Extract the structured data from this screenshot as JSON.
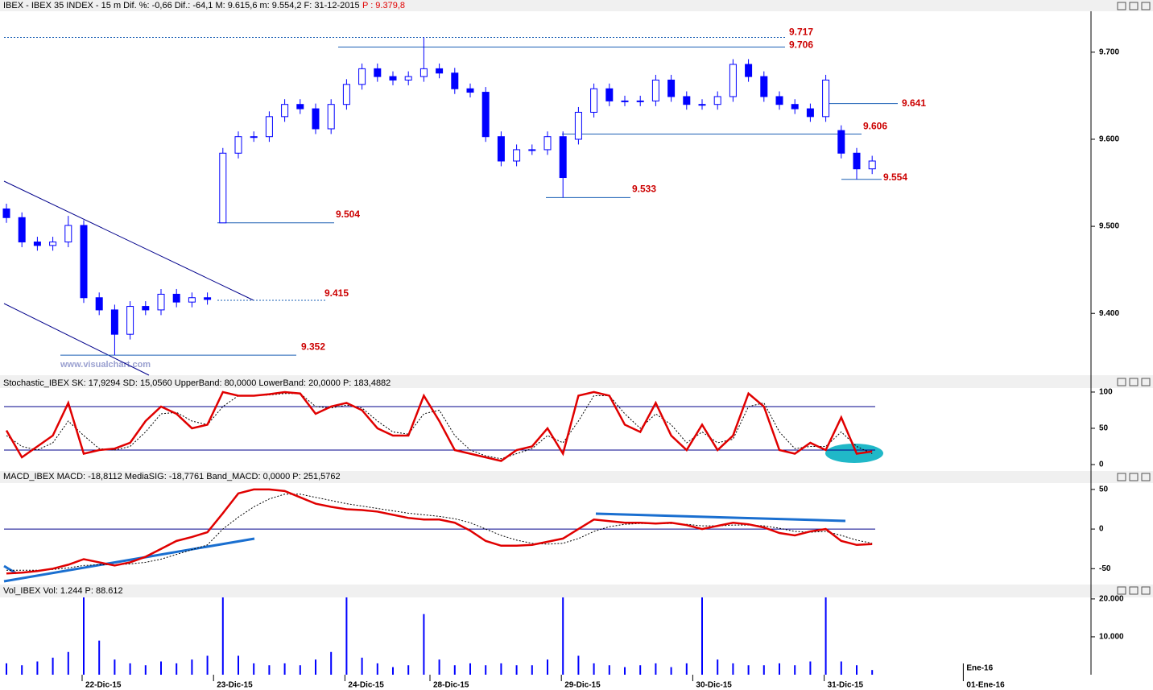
{
  "header": {
    "title": "IBEX - IBEX 35 INDEX - 15 m  Dif. %: -0,66  Dif.: -64,1  M: 9.615,6  m: 9.554,2  F: 31-12-2015",
    "extra": "P : 9.379,8"
  },
  "watermark": "www.visualchart.com",
  "chart_data": [
    {
      "type": "candlestick",
      "color": "#0000ff",
      "xlim": [
        0,
        70
      ],
      "xticks": [
        {
          "value": 5,
          "label": "22-Dic-15"
        },
        {
          "value": 13.5,
          "label": "23-Dic-15"
        },
        {
          "value": 22,
          "label": "24-Dic-15"
        },
        {
          "value": 27.5,
          "label": "28-Dic-15"
        },
        {
          "value": 36,
          "label": "29-Dic-15"
        },
        {
          "value": 44.5,
          "label": "30-Dic-15"
        },
        {
          "value": 53,
          "label": "31-Dic-15"
        },
        {
          "value": 62,
          "label": "01-Ene-16"
        }
      ],
      "month_ticks": [
        {
          "value": 62,
          "label": "Ene-16"
        }
      ],
      "ylim": [
        9329,
        9747
      ],
      "yticks": [
        {
          "value": 9400,
          "label": "9.400"
        },
        {
          "value": 9500,
          "label": "9.500"
        },
        {
          "value": 9600,
          "label": "9.600"
        },
        {
          "value": 9700,
          "label": "9.700"
        }
      ],
      "open": [
        9520,
        9510,
        9482,
        9478,
        9482,
        9501,
        9418,
        9404,
        9376,
        9408,
        9404,
        9422,
        9413,
        9418,
        9504,
        9584,
        9603,
        9603,
        9626,
        9640,
        9635,
        9612,
        9640,
        9663,
        9681,
        9672,
        9668,
        9672,
        9681,
        9676,
        9658,
        9654,
        9603,
        9575,
        9588,
        9588,
        9603,
        9600,
        9631,
        9658,
        9644,
        9644,
        9644,
        9668,
        9649,
        9640,
        9640,
        9649,
        9686,
        9672,
        9649,
        9640,
        9635,
        9626,
        9610,
        9584,
        9566
      ],
      "high": [
        9526,
        9516,
        9488,
        9488,
        9512,
        9507,
        9424,
        9410,
        9414,
        9414,
        9428,
        9428,
        9424,
        9424,
        9590,
        9609,
        9609,
        9632,
        9646,
        9646,
        9641,
        9646,
        9669,
        9687,
        9687,
        9678,
        9678,
        9717,
        9687,
        9682,
        9664,
        9660,
        9609,
        9594,
        9594,
        9609,
        9609,
        9637,
        9664,
        9664,
        9650,
        9650,
        9674,
        9674,
        9655,
        9646,
        9655,
        9692,
        9692,
        9678,
        9655,
        9646,
        9641,
        9674,
        9616,
        9590,
        9581
      ],
      "low": [
        9504,
        9476,
        9472,
        9472,
        9476,
        9412,
        9398,
        9352,
        9370,
        9398,
        9398,
        9407,
        9407,
        9410,
        9504,
        9578,
        9597,
        9597,
        9620,
        9629,
        9606,
        9606,
        9634,
        9657,
        9666,
        9662,
        9662,
        9666,
        9670,
        9652,
        9648,
        9597,
        9569,
        9569,
        9582,
        9582,
        9533,
        9594,
        9625,
        9638,
        9638,
        9638,
        9638,
        9643,
        9634,
        9634,
        9634,
        9643,
        9666,
        9643,
        9634,
        9629,
        9620,
        9620,
        9578,
        9554,
        9560
      ],
      "close": [
        9510,
        9482,
        9478,
        9482,
        9501,
        9418,
        9404,
        9376,
        9408,
        9404,
        9422,
        9413,
        9418,
        9416,
        9584,
        9603,
        9603,
        9626,
        9640,
        9635,
        9612,
        9640,
        9663,
        9681,
        9672,
        9668,
        9672,
        9681,
        9676,
        9658,
        9654,
        9603,
        9575,
        9588,
        9588,
        9603,
        9556,
        9631,
        9658,
        9644,
        9644,
        9644,
        9668,
        9649,
        9640,
        9640,
        9649,
        9686,
        9672,
        9649,
        9640,
        9635,
        9626,
        9668,
        9584,
        9566,
        9575
      ],
      "annotations": [
        {
          "value": 9717,
          "label": "9.717"
        },
        {
          "value": 9706,
          "label": "9.706"
        },
        {
          "value": 9641,
          "label": "9.641"
        },
        {
          "value": 9606,
          "label": "9.606"
        },
        {
          "value": 9554,
          "label": "9.554"
        },
        {
          "value": 9533,
          "label": "9.533"
        },
        {
          "value": 9504,
          "label": "9.504"
        },
        {
          "value": 9415,
          "label": "9.415"
        },
        {
          "value": 9352,
          "label": "9.352"
        }
      ]
    },
    {
      "type": "line",
      "title": "Stochastic_IBEX SK: 17,9294  SD: 15,0560  UpperBand: 80,0000  LowerBand: 20,0000  P: 183,4882",
      "ylim": [
        -10,
        105.5
      ],
      "yticks": [
        0,
        50,
        100
      ],
      "bands": [
        80,
        20
      ],
      "series": [
        {
          "name": "SK",
          "color": "#e00000",
          "values": [
            47,
            10,
            25,
            40,
            85,
            15,
            20,
            22,
            30,
            60,
            80,
            70,
            50,
            55,
            100,
            95,
            95,
            97,
            100,
            98,
            70,
            80,
            85,
            75,
            50,
            40,
            40,
            95,
            60,
            20,
            15,
            10,
            5,
            20,
            25,
            50,
            15,
            95,
            100,
            95,
            55,
            45,
            85,
            40,
            20,
            55,
            20,
            40,
            98,
            80,
            20,
            15,
            30,
            20,
            65,
            15,
            18
          ]
        },
        {
          "name": "SD",
          "color": "#000000",
          "values": [
            40,
            25,
            20,
            30,
            60,
            40,
            22,
            20,
            25,
            45,
            70,
            72,
            60,
            55,
            80,
            95,
            95,
            96,
            98,
            98,
            80,
            78,
            82,
            78,
            60,
            45,
            42,
            70,
            75,
            40,
            20,
            12,
            8,
            15,
            22,
            40,
            30,
            60,
            95,
            95,
            70,
            50,
            70,
            55,
            30,
            45,
            30,
            35,
            80,
            85,
            45,
            22,
            25,
            25,
            45,
            25,
            15
          ]
        }
      ]
    },
    {
      "type": "line",
      "title": "MACD_IBEX MACD: -18,8112  MediaSIG: -18,7761  Band_MACD: 0,0000  P: 251,5762",
      "ylim": [
        -70,
        58
      ],
      "yticks": [
        -50,
        0,
        50
      ],
      "bands": [
        0
      ],
      "series": [
        {
          "name": "MACD",
          "color": "#e00000",
          "values": [
            -56,
            -55,
            -53,
            -50,
            -45,
            -38,
            -42,
            -46,
            -42,
            -35,
            -25,
            -15,
            -10,
            -4,
            20,
            45,
            50,
            50,
            48,
            40,
            32,
            28,
            25,
            24,
            22,
            18,
            14,
            12,
            12,
            8,
            -2,
            -15,
            -21,
            -21,
            -20,
            -16,
            -12,
            0,
            12,
            10,
            8,
            8,
            7,
            8,
            5,
            0,
            4,
            8,
            6,
            2,
            -5,
            -8,
            -3,
            0,
            -15,
            -20,
            -19
          ]
        },
        {
          "name": "MediaSIG",
          "color": "#000000",
          "values": [
            -52,
            -52,
            -52,
            -51,
            -49,
            -46,
            -45,
            -45,
            -44,
            -42,
            -38,
            -32,
            -26,
            -20,
            0,
            15,
            28,
            38,
            44,
            44,
            40,
            36,
            32,
            29,
            26,
            23,
            20,
            18,
            16,
            13,
            8,
            0,
            -8,
            -14,
            -18,
            -19,
            -18,
            -12,
            -3,
            3,
            6,
            7,
            7,
            7,
            6,
            4,
            4,
            5,
            5,
            4,
            1,
            -3,
            -4,
            -3,
            -8,
            -14,
            -18
          ]
        }
      ]
    },
    {
      "type": "bar",
      "title": "Vol_IBEX Vol: 1.244  P: 88.612",
      "color": "#0000ff",
      "ylim": [
        0,
        20400
      ],
      "yticks": [
        {
          "value": 10000,
          "label": "10.000"
        },
        {
          "value": 20000,
          "label": "20.000"
        }
      ],
      "values": [
        3000,
        2500,
        3500,
        4500,
        6000,
        20500,
        9000,
        4000,
        3000,
        2500,
        3500,
        3000,
        4000,
        5000,
        20500,
        5000,
        3000,
        2500,
        3000,
        2500,
        4000,
        6000,
        20500,
        4500,
        3000,
        2000,
        2500,
        16000,
        4000,
        2500,
        3000,
        2500,
        3000,
        2500,
        2500,
        4000,
        20500,
        5000,
        3000,
        2500,
        2000,
        2500,
        3000,
        2000,
        3000,
        20500,
        4000,
        3000,
        2500,
        2500,
        3000,
        2500,
        3500,
        20500,
        3500,
        2500,
        1244
      ]
    }
  ]
}
